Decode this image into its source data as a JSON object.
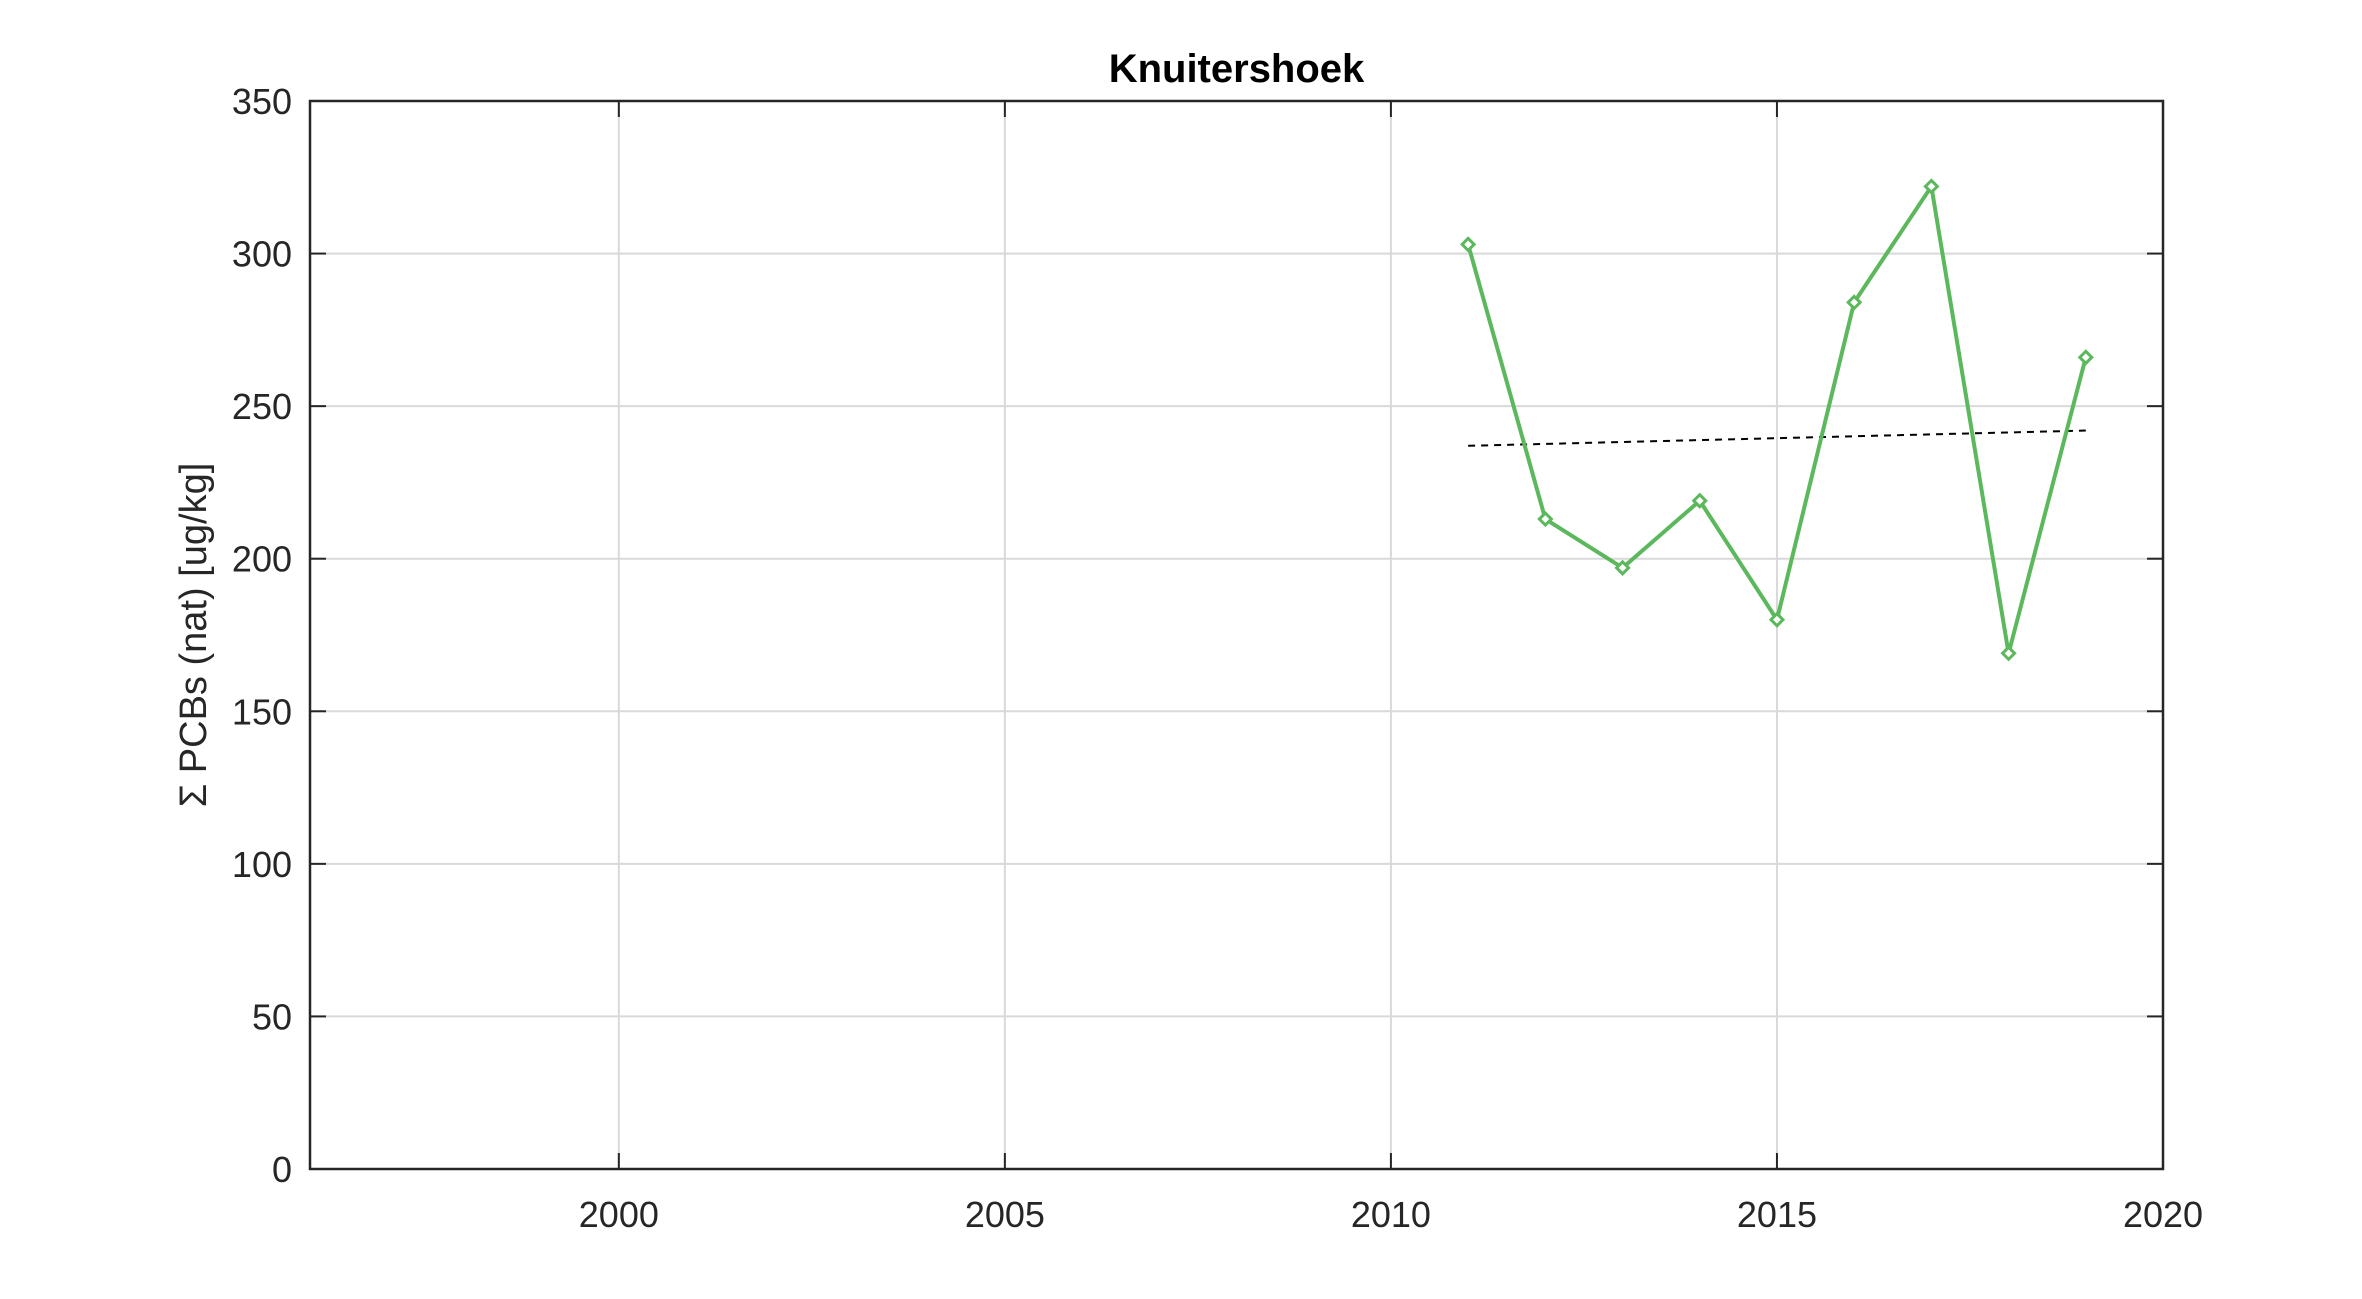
{
  "chart_data": {
    "type": "line",
    "title": "Knuitershoek",
    "ylabel": "Σ PCBs (nat) [ug/kg]",
    "xlabel": "",
    "xlim": [
      1996,
      2020
    ],
    "ylim": [
      0,
      350
    ],
    "x_ticks": [
      "2000",
      "2005",
      "2010",
      "2015",
      "2020"
    ],
    "y_ticks": [
      "0",
      "50",
      "100",
      "150",
      "200",
      "250",
      "300",
      "350"
    ],
    "grid": true,
    "series": [
      {
        "color": "#5cb85c",
        "marker": "diamond",
        "x": [
          2011,
          2012,
          2013,
          2014,
          2015,
          2016,
          2017,
          2018,
          2019
        ],
        "values": [
          303,
          213,
          197,
          219,
          180,
          284,
          322,
          169,
          266
        ]
      }
    ],
    "trend": {
      "style": "dashed",
      "color": "#000000",
      "x": [
        2011,
        2019
      ],
      "values": [
        237,
        242
      ]
    }
  }
}
